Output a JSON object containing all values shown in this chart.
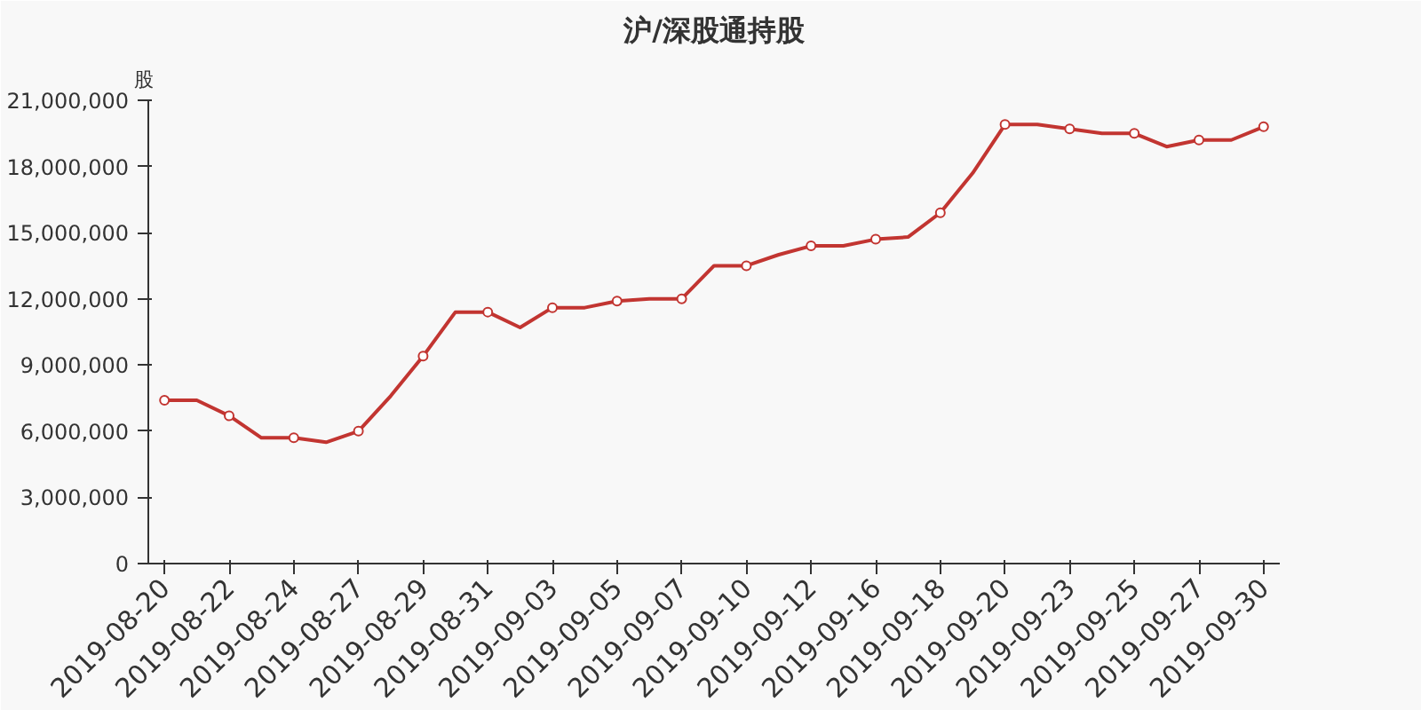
{
  "chart_data": {
    "type": "line",
    "title": "沪/深股通持股",
    "ylabel": "股",
    "categories": [
      "2019-08-20",
      null,
      "2019-08-22",
      null,
      "2019-08-24",
      null,
      "2019-08-27",
      null,
      "2019-08-29",
      null,
      "2019-08-31",
      null,
      "2019-09-03",
      null,
      "2019-09-05",
      null,
      "2019-09-07",
      null,
      "2019-09-10",
      null,
      "2019-09-12",
      null,
      "2019-09-16",
      null,
      "2019-09-18",
      null,
      "2019-09-20",
      null,
      "2019-09-23",
      null,
      "2019-09-25",
      null,
      "2019-09-27",
      null,
      "2019-09-30"
    ],
    "series": [
      {
        "color": "#c23531",
        "values": [
          7400000,
          7400000,
          6700000,
          5700000,
          5700000,
          5500000,
          6000000,
          7600000,
          9400000,
          11400000,
          11400000,
          10700000,
          11600000,
          11600000,
          11900000,
          12000000,
          12000000,
          13500000,
          13500000,
          14000000,
          14400000,
          14400000,
          14700000,
          14800000,
          15900000,
          17700000,
          19900000,
          19900000,
          19700000,
          19500000,
          19500000,
          18900000,
          19200000,
          19200000,
          19800000
        ]
      }
    ],
    "ylim": [
      0,
      21000000
    ],
    "yticks": [
      {
        "value": 0,
        "label": "0"
      },
      {
        "value": 3000000,
        "label": "3,000,000"
      },
      {
        "value": 6000000,
        "label": "6,000,000"
      },
      {
        "value": 9000000,
        "label": "9,000,000"
      },
      {
        "value": 12000000,
        "label": "12,000,000"
      },
      {
        "value": 15000000,
        "label": "15,000,000"
      },
      {
        "value": 18000000,
        "label": "18,000,000"
      },
      {
        "value": 21000000,
        "label": "21,000,000"
      }
    ],
    "grid": false,
    "marker": "circle",
    "line_style": "solid"
  }
}
